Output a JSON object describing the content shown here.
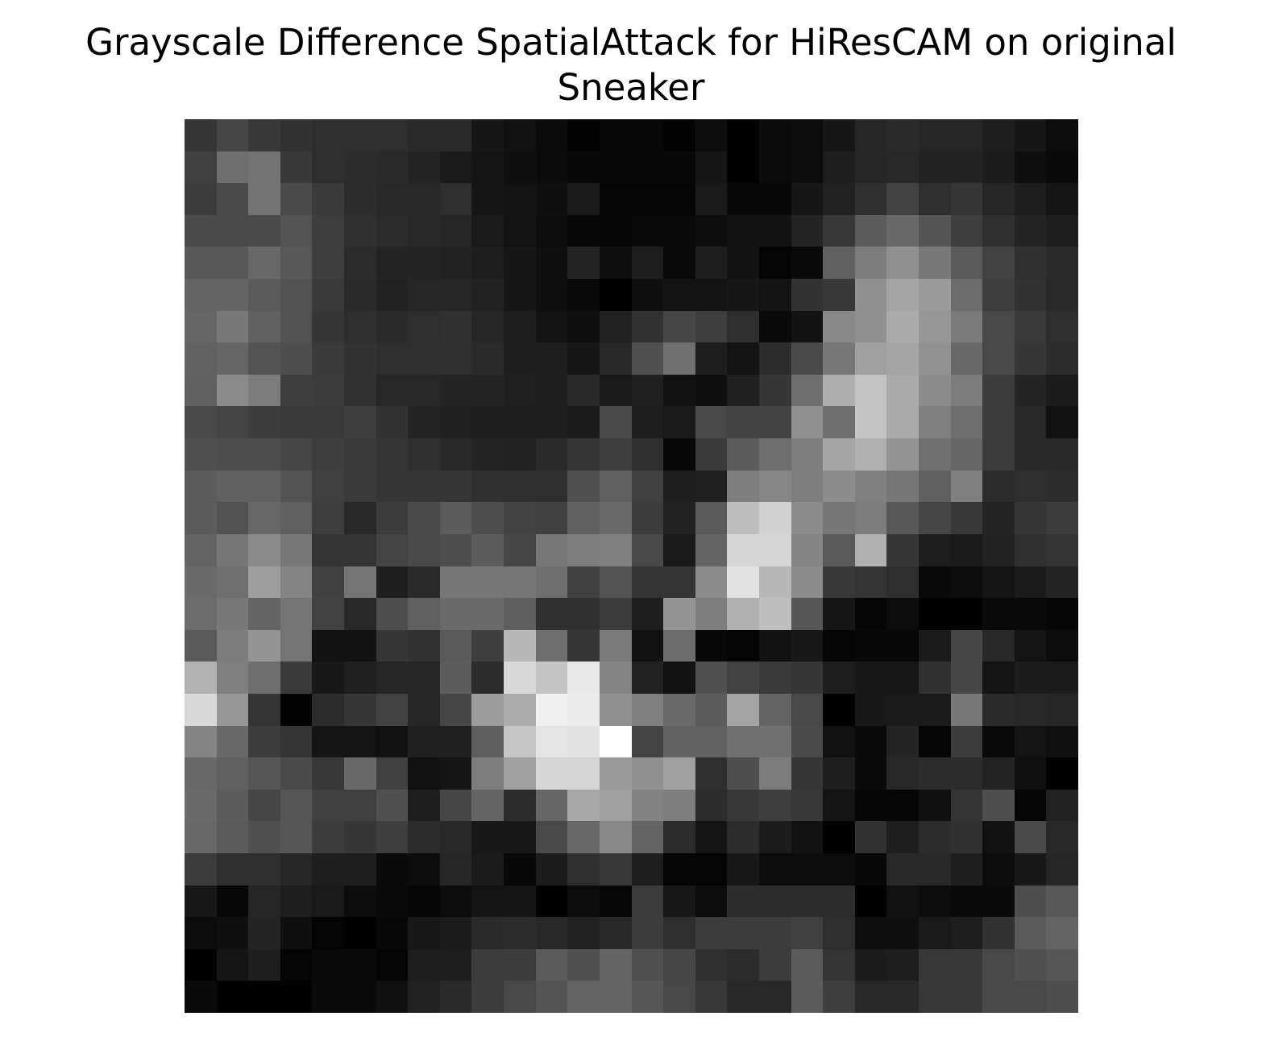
{
  "chart_data": {
    "type": "heatmap",
    "title_lines": [
      "Grayscale Difference SpatialAttack for HiResCAM on original",
      "Sneaker"
    ],
    "xlabel": "",
    "ylabel": "",
    "colormap": "gray",
    "value_range": [
      0,
      255
    ],
    "axes_visible": false,
    "grid": false,
    "rows": 28,
    "cols": 28,
    "values": [
      [
        54,
        70,
        57,
        50,
        46,
        46,
        46,
        42,
        42,
        23,
        17,
        11,
        3,
        8,
        8,
        3,
        13,
        2,
        11,
        13,
        23,
        38,
        42,
        38,
        38,
        30,
        23,
        12
      ],
      [
        64,
        110,
        115,
        56,
        46,
        44,
        42,
        36,
        26,
        21,
        15,
        11,
        8,
        8,
        8,
        8,
        22,
        2,
        11,
        13,
        30,
        38,
        40,
        34,
        34,
        28,
        15,
        10
      ],
      [
        60,
        74,
        115,
        74,
        58,
        44,
        40,
        40,
        46,
        21,
        19,
        15,
        26,
        6,
        6,
        6,
        26,
        8,
        8,
        23,
        34,
        48,
        66,
        46,
        54,
        38,
        30,
        21
      ],
      [
        74,
        74,
        74,
        84,
        62,
        48,
        44,
        40,
        38,
        26,
        19,
        13,
        8,
        6,
        10,
        10,
        13,
        18,
        18,
        36,
        56,
        92,
        104,
        84,
        62,
        48,
        36,
        30
      ],
      [
        88,
        88,
        104,
        88,
        62,
        44,
        36,
        36,
        34,
        30,
        23,
        15,
        36,
        15,
        30,
        10,
        30,
        18,
        4,
        10,
        96,
        124,
        144,
        120,
        90,
        66,
        48,
        42
      ],
      [
        100,
        100,
        90,
        82,
        58,
        42,
        34,
        38,
        38,
        34,
        23,
        15,
        10,
        2,
        15,
        19,
        19,
        23,
        19,
        50,
        56,
        144,
        164,
        154,
        108,
        62,
        50,
        42
      ],
      [
        102,
        120,
        96,
        82,
        54,
        46,
        42,
        46,
        48,
        38,
        30,
        19,
        15,
        34,
        50,
        70,
        62,
        46,
        10,
        18,
        136,
        144,
        170,
        150,
        122,
        72,
        58,
        46
      ],
      [
        98,
        102,
        84,
        78,
        58,
        50,
        46,
        46,
        46,
        42,
        30,
        30,
        23,
        40,
        80,
        112,
        30,
        19,
        44,
        74,
        120,
        160,
        164,
        146,
        104,
        72,
        54,
        44
      ],
      [
        96,
        138,
        124,
        62,
        60,
        50,
        40,
        40,
        36,
        36,
        32,
        30,
        40,
        26,
        32,
        17,
        15,
        32,
        54,
        110,
        174,
        196,
        170,
        140,
        124,
        60,
        36,
        28
      ],
      [
        74,
        68,
        60,
        58,
        58,
        62,
        50,
        36,
        32,
        30,
        30,
        30,
        28,
        72,
        30,
        26,
        72,
        66,
        66,
        144,
        110,
        196,
        170,
        128,
        110,
        60,
        40,
        17
      ],
      [
        80,
        78,
        78,
        70,
        62,
        58,
        52,
        46,
        40,
        36,
        34,
        42,
        52,
        62,
        46,
        8,
        58,
        90,
        110,
        126,
        166,
        176,
        148,
        112,
        102,
        60,
        40,
        40
      ],
      [
        92,
        96,
        96,
        84,
        64,
        58,
        54,
        54,
        54,
        48,
        48,
        46,
        80,
        96,
        64,
        30,
        32,
        126,
        134,
        126,
        140,
        128,
        118,
        96,
        128,
        44,
        46,
        44
      ],
      [
        92,
        82,
        104,
        96,
        62,
        40,
        60,
        74,
        92,
        78,
        66,
        64,
        96,
        106,
        60,
        34,
        90,
        190,
        210,
        140,
        118,
        124,
        88,
        70,
        56,
        36,
        54,
        60
      ],
      [
        100,
        118,
        138,
        120,
        52,
        52,
        68,
        74,
        78,
        92,
        70,
        120,
        126,
        128,
        72,
        26,
        100,
        214,
        214,
        132,
        90,
        176,
        54,
        30,
        26,
        34,
        48,
        52
      ],
      [
        106,
        112,
        158,
        132,
        64,
        116,
        30,
        42,
        118,
        118,
        118,
        110,
        64,
        84,
        52,
        52,
        140,
        226,
        184,
        140,
        56,
        52,
        46,
        10,
        12,
        20,
        27,
        36
      ],
      [
        108,
        120,
        100,
        116,
        66,
        40,
        78,
        96,
        106,
        106,
        94,
        48,
        48,
        60,
        30,
        148,
        126,
        176,
        190,
        86,
        22,
        6,
        12,
        2,
        2,
        10,
        10,
        6
      ],
      [
        90,
        124,
        148,
        116,
        18,
        18,
        54,
        50,
        90,
        62,
        184,
        110,
        54,
        122,
        18,
        108,
        8,
        4,
        17,
        24,
        6,
        8,
        8,
        28,
        70,
        40,
        20,
        12
      ],
      [
        178,
        128,
        110,
        58,
        24,
        32,
        38,
        38,
        92,
        44,
        216,
        196,
        232,
        132,
        34,
        17,
        80,
        66,
        58,
        54,
        30,
        24,
        24,
        48,
        70,
        20,
        28,
        28
      ],
      [
        216,
        150,
        52,
        3,
        44,
        54,
        66,
        38,
        70,
        156,
        172,
        240,
        236,
        144,
        128,
        106,
        92,
        164,
        100,
        72,
        2,
        24,
        26,
        26,
        120,
        42,
        40,
        38
      ],
      [
        132,
        104,
        60,
        52,
        20,
        20,
        17,
        32,
        32,
        94,
        198,
        228,
        226,
        254,
        68,
        98,
        98,
        112,
        112,
        74,
        17,
        10,
        36,
        6,
        60,
        10,
        20,
        16
      ],
      [
        104,
        96,
        86,
        74,
        56,
        104,
        64,
        17,
        20,
        126,
        160,
        214,
        212,
        154,
        144,
        160,
        46,
        78,
        124,
        54,
        30,
        10,
        40,
        44,
        44,
        36,
        16,
        2
      ],
      [
        106,
        92,
        70,
        86,
        64,
        64,
        80,
        30,
        70,
        100,
        44,
        102,
        168,
        160,
        130,
        126,
        44,
        56,
        62,
        56,
        20,
        6,
        6,
        16,
        52,
        78,
        6,
        34
      ],
      [
        104,
        90,
        80,
        86,
        60,
        54,
        62,
        44,
        40,
        24,
        24,
        72,
        104,
        136,
        100,
        44,
        20,
        44,
        28,
        18,
        2,
        50,
        30,
        44,
        48,
        17,
        74,
        40
      ],
      [
        60,
        46,
        46,
        38,
        30,
        30,
        10,
        12,
        38,
        28,
        8,
        28,
        46,
        56,
        30,
        4,
        4,
        24,
        12,
        12,
        12,
        8,
        40,
        40,
        30,
        12,
        24,
        38
      ],
      [
        24,
        8,
        38,
        30,
        26,
        13,
        10,
        6,
        12,
        20,
        20,
        2,
        12,
        8,
        60,
        24,
        12,
        44,
        44,
        44,
        44,
        2,
        17,
        13,
        10,
        10,
        78,
        88
      ],
      [
        12,
        15,
        36,
        15,
        4,
        2,
        8,
        24,
        28,
        42,
        44,
        40,
        34,
        40,
        60,
        46,
        60,
        60,
        60,
        64,
        46,
        15,
        15,
        26,
        30,
        50,
        90,
        100
      ],
      [
        2,
        20,
        30,
        4,
        10,
        10,
        4,
        30,
        30,
        60,
        60,
        90,
        80,
        100,
        80,
        70,
        48,
        44,
        60,
        90,
        52,
        28,
        30,
        56,
        56,
        72,
        80,
        86
      ],
      [
        10,
        2,
        2,
        2,
        10,
        10,
        16,
        34,
        42,
        60,
        72,
        84,
        100,
        100,
        86,
        72,
        56,
        40,
        40,
        92,
        62,
        40,
        40,
        56,
        56,
        72,
        72,
        78
      ]
    ]
  }
}
